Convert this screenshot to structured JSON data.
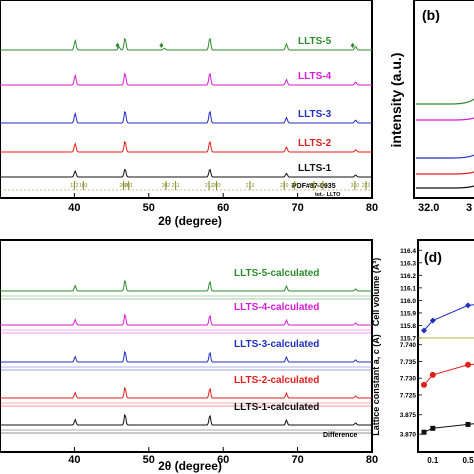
{
  "chart_data": [
    {
      "panel": "a",
      "type": "line",
      "xlabel": "2θ (degree)",
      "ylabel": "",
      "xlim": [
        30,
        80
      ],
      "xticks": [
        40,
        50,
        60,
        70,
        80
      ],
      "series": [
        {
          "name": "LLTS-5",
          "color": "#2e8b2e",
          "peaks": [
            {
              "x": 40.1,
              "h": 0.8
            },
            {
              "x": 46.8,
              "h": 1.0
            },
            {
              "x": 58.2,
              "h": 1.0
            },
            {
              "x": 68.5,
              "h": 0.5
            },
            {
              "x": 77.8,
              "h": 0.3
            },
            {
              "x": 46.0,
              "h": 0.25
            },
            {
              "x": 52.1,
              "h": 0.15
            }
          ]
        },
        {
          "name": "LLTS-4",
          "color": "#d81bd8",
          "peaks": [
            {
              "x": 40.1,
              "h": 0.8
            },
            {
              "x": 46.8,
              "h": 1.0
            },
            {
              "x": 58.2,
              "h": 1.0
            },
            {
              "x": 68.5,
              "h": 0.45
            },
            {
              "x": 77.8,
              "h": 0.25
            }
          ]
        },
        {
          "name": "LLTS-3",
          "color": "#1f2fbf",
          "peaks": [
            {
              "x": 40.1,
              "h": 0.8
            },
            {
              "x": 46.8,
              "h": 1.0
            },
            {
              "x": 58.2,
              "h": 1.0
            },
            {
              "x": 68.5,
              "h": 0.45
            },
            {
              "x": 77.8,
              "h": 0.25
            }
          ]
        },
        {
          "name": "LLTS-2",
          "color": "#e0201e",
          "peaks": [
            {
              "x": 40.1,
              "h": 0.7
            },
            {
              "x": 46.8,
              "h": 0.9
            },
            {
              "x": 58.2,
              "h": 0.9
            },
            {
              "x": 68.5,
              "h": 0.4
            },
            {
              "x": 77.8,
              "h": 0.2
            }
          ]
        },
        {
          "name": "LLTS-1",
          "color": "#111111",
          "peaks": [
            {
              "x": 40.1,
              "h": 0.6
            },
            {
              "x": 46.8,
              "h": 0.8
            },
            {
              "x": 58.2,
              "h": 0.8
            },
            {
              "x": 68.5,
              "h": 0.35
            },
            {
              "x": 77.8,
              "h": 0.2
            }
          ]
        }
      ],
      "markers": [
        {
          "x": 45.8,
          "symbol": "♦"
        },
        {
          "x": 51.7,
          "symbol": "♦"
        },
        {
          "x": 77.4,
          "symbol": "♦"
        }
      ],
      "reference": {
        "title": "PDF#87-0935",
        "subtitle": "tet.- LLTO",
        "color": "#8a8a2a",
        "lines": [
          {
            "x": 40.0,
            "label": "112"
          },
          {
            "x": 41.2,
            "label": "103"
          },
          {
            "x": 46.6,
            "label": "200"
          },
          {
            "x": 47.3,
            "label": "201"
          },
          {
            "x": 52.3,
            "label": "202"
          },
          {
            "x": 53.6,
            "label": "211"
          },
          {
            "x": 58.1,
            "label": "212"
          },
          {
            "x": 59.1,
            "label": "203"
          },
          {
            "x": 63.6,
            "label": "213"
          },
          {
            "x": 68.2,
            "label": "220"
          },
          {
            "x": 69.6,
            "label": "221"
          },
          {
            "x": 72.2,
            "label": "214"
          },
          {
            "x": 73.4,
            "label": "301"
          },
          {
            "x": 77.7,
            "label": "310"
          },
          {
            "x": 79.2,
            "label": "223"
          }
        ]
      }
    },
    {
      "panel": "b",
      "type": "line",
      "ylabel": "intensity (a.u.)",
      "xlim": [
        32.0,
        33.0
      ],
      "xticks": [
        32.0
      ],
      "series": [
        {
          "color": "#2e8b2e"
        },
        {
          "color": "#d81bd8"
        },
        {
          "color": "#1f2fbf"
        },
        {
          "color": "#e0201e"
        },
        {
          "color": "#111111"
        }
      ]
    },
    {
      "panel": "c",
      "type": "line",
      "xlabel": "2θ (degree)",
      "xlim": [
        30,
        80
      ],
      "xticks": [
        40,
        50,
        60,
        70,
        80
      ],
      "series": [
        {
          "name": "LLTS-5-calculated",
          "color": "#2e8b2e"
        },
        {
          "name": "LLTS-4-calculated",
          "color": "#d81bd8"
        },
        {
          "name": "LLTS-3-calculated",
          "color": "#1f2fbf"
        },
        {
          "name": "LLTS-2-calculated",
          "color": "#e0201e"
        },
        {
          "name": "LLTS-1-calculated",
          "color": "#111111"
        }
      ],
      "difference_label": "Difference",
      "peaks": [
        40.1,
        46.8,
        58.2,
        68.5,
        77.8
      ]
    },
    {
      "panel": "d",
      "type": "scatter",
      "subplots": [
        {
          "ylabel": "Cell volume (Å³)",
          "color": "#1f2fbf",
          "yticks": [
            115.7,
            115.8,
            115.9,
            116.0,
            116.1,
            116.2,
            116.3,
            116.4
          ],
          "ylim": [
            115.7,
            116.45
          ],
          "x": [
            0.0,
            0.1,
            0.5
          ],
          "values": [
            115.76,
            115.84,
            115.96
          ]
        },
        {
          "ylabel": "Lattice constant a, c (Å)",
          "color": "#e0201e",
          "yticks": [
            7.725,
            7.73,
            7.735,
            7.74
          ],
          "ylim": [
            7.722,
            7.742
          ],
          "x": [
            0.0,
            0.1,
            0.5
          ],
          "values": [
            7.728,
            7.731,
            7.734
          ]
        },
        {
          "color": "#111111",
          "yticks": [
            3.87,
            3.875
          ],
          "ylim": [
            3.8685,
            3.8775
          ],
          "x": [
            0.0,
            0.1,
            0.5
          ],
          "values": [
            3.8705,
            3.8715,
            3.8725
          ]
        }
      ],
      "xticks": [
        "0.1",
        "0.5"
      ]
    }
  ]
}
